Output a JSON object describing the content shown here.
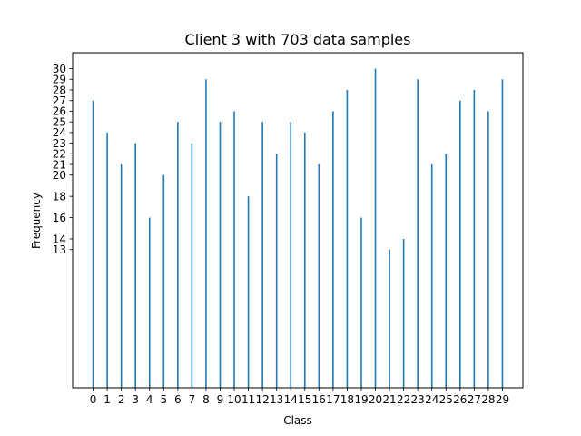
{
  "chart_data": {
    "type": "bar",
    "title": "Client 3 with 703 data samples",
    "xlabel": "Class",
    "ylabel": "Frequency",
    "categories": [
      "0",
      "1",
      "2",
      "3",
      "4",
      "5",
      "6",
      "7",
      "8",
      "9",
      "10",
      "11",
      "12",
      "13",
      "14",
      "15",
      "16",
      "17",
      "18",
      "19",
      "20",
      "21",
      "22",
      "23",
      "24",
      "25",
      "26",
      "27",
      "28",
      "29"
    ],
    "values": [
      27,
      24,
      21,
      23,
      16,
      20,
      25,
      23,
      29,
      25,
      26,
      18,
      25,
      22,
      25,
      24,
      21,
      26,
      28,
      16,
      30,
      13,
      14,
      29,
      21,
      22,
      27,
      28,
      26,
      29
    ],
    "yticks": [
      13,
      14,
      16,
      18,
      20,
      21,
      22,
      23,
      24,
      25,
      26,
      27,
      28,
      29,
      30
    ],
    "ylim": [
      0,
      31.5
    ],
    "xlim": [
      -1.45,
      30.45
    ],
    "color": "#1f77b4",
    "grid": false,
    "legend": false
  }
}
